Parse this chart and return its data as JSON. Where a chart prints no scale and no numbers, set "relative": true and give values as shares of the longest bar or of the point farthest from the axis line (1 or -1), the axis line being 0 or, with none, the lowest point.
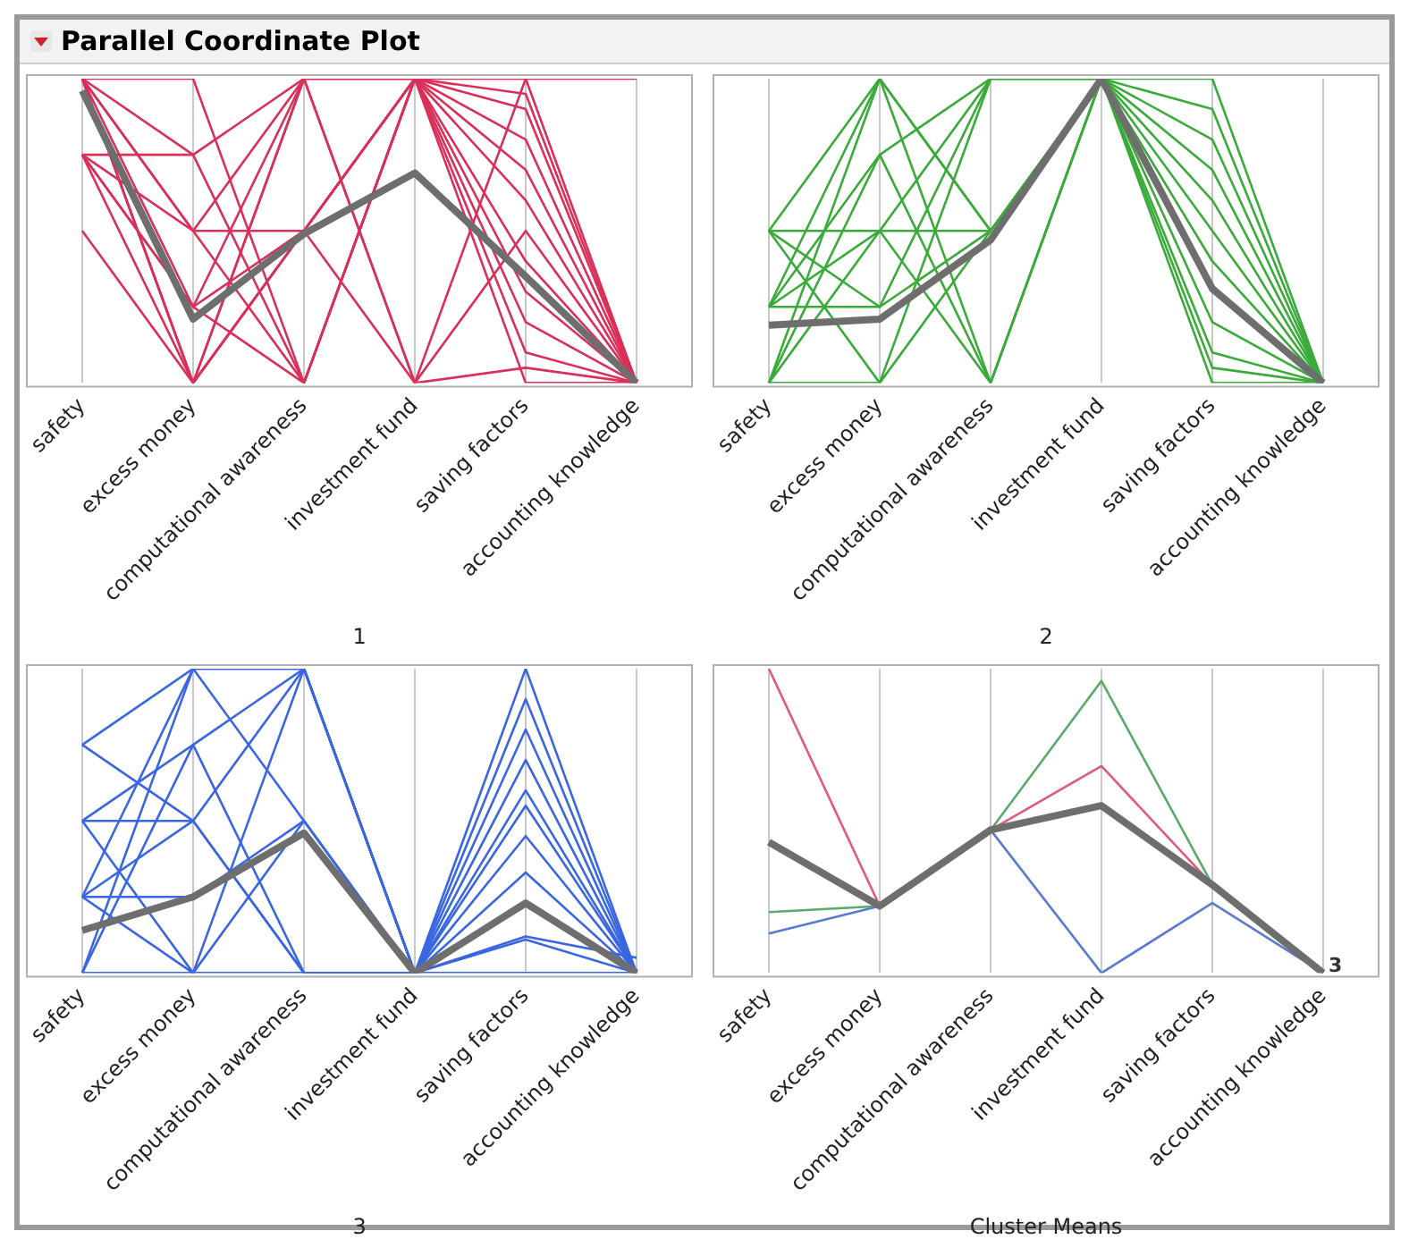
{
  "chart_data": [
    {
      "type": "line",
      "title": "Parallel Coordinate Plot",
      "xlabel": "1",
      "relative": true,
      "grid": "x",
      "categories": [
        "safety",
        "excess money",
        "computational awareness",
        "investment fund",
        "saving factors",
        "accounting knowledge"
      ],
      "series": [
        {
          "color": "#d9305a",
          "values": [
            1,
            0,
            1,
            1,
            0.9,
            0
          ]
        },
        {
          "color": "#d9305a",
          "values": [
            1,
            0.25,
            0.5,
            1,
            0.8,
            0
          ]
        },
        {
          "color": "#d9305a",
          "values": [
            1,
            0.5,
            0,
            1,
            0.7,
            0
          ]
        },
        {
          "color": "#d9305a",
          "values": [
            1,
            0,
            0.5,
            1,
            0.6,
            0
          ]
        },
        {
          "color": "#d9305a",
          "values": [
            1,
            0.75,
            1,
            0,
            0.5,
            0
          ]
        },
        {
          "color": "#d9305a",
          "values": [
            0.75,
            0.5,
            0.5,
            1,
            0.4,
            0
          ]
        },
        {
          "color": "#d9305a",
          "values": [
            0.75,
            0.75,
            0,
            1,
            0.3,
            0
          ]
        },
        {
          "color": "#d9305a",
          "values": [
            0.75,
            0,
            1,
            1,
            0.2,
            0
          ]
        },
        {
          "color": "#d9305a",
          "values": [
            0.75,
            0.25,
            0,
            1,
            0.1,
            0
          ]
        },
        {
          "color": "#d9305a",
          "values": [
            0.5,
            0,
            0.5,
            0,
            1,
            0
          ]
        },
        {
          "color": "#d9305a",
          "values": [
            1,
            1,
            0,
            1,
            0,
            0
          ]
        },
        {
          "color": "#d9305a",
          "values": [
            1,
            0.5,
            1,
            1,
            1,
            1
          ]
        },
        {
          "color": "#d9305a",
          "values": [
            0.75,
            0.25,
            1,
            0,
            0.05,
            0
          ]
        },
        {
          "color": "#d9305a",
          "values": [
            1,
            0,
            0.5,
            1,
            0.95,
            0
          ]
        },
        {
          "color": "#6e6e6e",
          "values": [
            0.96,
            0.21,
            0.49,
            0.69,
            0.35,
            0
          ]
        }
      ]
    },
    {
      "type": "line",
      "xlabel": "2",
      "relative": true,
      "grid": "x",
      "categories": [
        "safety",
        "excess money",
        "computational awareness",
        "investment fund",
        "saving factors",
        "accounting knowledge"
      ],
      "series": [
        {
          "color": "#3aab3a",
          "values": [
            0.5,
            1,
            0.5,
            1,
            0.9,
            0
          ]
        },
        {
          "color": "#3aab3a",
          "values": [
            0.25,
            0.75,
            1,
            1,
            0.8,
            0
          ]
        },
        {
          "color": "#3aab3a",
          "values": [
            0,
            1,
            0,
            1,
            0.6,
            0
          ]
        },
        {
          "color": "#3aab3a",
          "values": [
            0.5,
            0.25,
            1,
            1,
            0.5,
            0
          ]
        },
        {
          "color": "#3aab3a",
          "values": [
            0.25,
            0.5,
            0,
            1,
            0.4,
            0
          ]
        },
        {
          "color": "#3aab3a",
          "values": [
            0,
            0.5,
            1,
            1,
            0.3,
            0
          ]
        },
        {
          "color": "#3aab3a",
          "values": [
            0.5,
            0,
            0.5,
            1,
            0.2,
            0
          ]
        },
        {
          "color": "#3aab3a",
          "values": [
            0.25,
            0.25,
            0.5,
            1,
            0.1,
            0
          ]
        },
        {
          "color": "#3aab3a",
          "values": [
            0,
            0,
            1,
            1,
            0,
            0
          ]
        },
        {
          "color": "#3aab3a",
          "values": [
            0.5,
            0.5,
            0.5,
            1,
            1,
            0
          ]
        },
        {
          "color": "#3aab3a",
          "values": [
            0.25,
            1,
            0.5,
            1,
            0.7,
            0
          ]
        },
        {
          "color": "#3aab3a",
          "values": [
            0,
            0.75,
            0,
            1,
            0.05,
            0
          ]
        },
        {
          "color": "#6e6e6e",
          "values": [
            0.19,
            0.21,
            0.47,
            1,
            0.31,
            0
          ]
        }
      ]
    },
    {
      "type": "line",
      "xlabel": "3",
      "relative": true,
      "grid": "x",
      "categories": [
        "safety",
        "excess money",
        "computational awareness",
        "investment fund",
        "saving factors",
        "accounting knowledge"
      ],
      "series": [
        {
          "color": "#3a66e0",
          "values": [
            0.75,
            1,
            0.5,
            0,
            1,
            0
          ]
        },
        {
          "color": "#3a66e0",
          "values": [
            0.75,
            0.5,
            0,
            0,
            0.9,
            0
          ]
        },
        {
          "color": "#3a66e0",
          "values": [
            0.5,
            0.5,
            1,
            0,
            0.8,
            0
          ]
        },
        {
          "color": "#3a66e0",
          "values": [
            0.5,
            0,
            0.5,
            0,
            0.7,
            0
          ]
        },
        {
          "color": "#3a66e0",
          "values": [
            0.25,
            1,
            1,
            0,
            0.6,
            0
          ]
        },
        {
          "color": "#3a66e0",
          "values": [
            0.25,
            0.25,
            0.5,
            0,
            0.55,
            0
          ]
        },
        {
          "color": "#3a66e0",
          "values": [
            0,
            0.75,
            0,
            0,
            0.45,
            0
          ]
        },
        {
          "color": "#3a66e0",
          "values": [
            0,
            1,
            1,
            0,
            0.33,
            0
          ]
        },
        {
          "color": "#3a66e0",
          "values": [
            0.25,
            0.5,
            0,
            0,
            0.22,
            0
          ]
        },
        {
          "color": "#3a66e0",
          "values": [
            0.5,
            0.75,
            1,
            0,
            0.11,
            0
          ]
        },
        {
          "color": "#3a66e0",
          "values": [
            0,
            0,
            0,
            0,
            0,
            0
          ]
        },
        {
          "color": "#3a66e0",
          "values": [
            0.25,
            0,
            1,
            0,
            0.12,
            0.05
          ]
        },
        {
          "color": "#6e6e6e",
          "values": [
            0.14,
            0.25,
            0.46,
            0,
            0.23,
            0
          ]
        }
      ]
    },
    {
      "type": "line",
      "xlabel": "Cluster Means",
      "relative": true,
      "grid": "x",
      "annotations": [
        {
          "text": "3",
          "x": "accounting knowledge",
          "y": 0
        }
      ],
      "categories": [
        "safety",
        "excess money",
        "computational awareness",
        "investment fund",
        "saving factors",
        "accounting knowledge"
      ],
      "series": [
        {
          "color": "#e05a7a",
          "values": [
            1,
            0.22,
            0.47,
            0.68,
            0.29,
            0
          ]
        },
        {
          "color": "#5aab6a",
          "values": [
            0.2,
            0.22,
            0.47,
            0.96,
            0.29,
            0
          ]
        },
        {
          "color": "#5a7ad0",
          "values": [
            0.13,
            0.22,
            0.47,
            0,
            0.23,
            0
          ]
        },
        {
          "color": "#6e6e6e",
          "values": [
            0.43,
            0.22,
            0.47,
            0.55,
            0.29,
            0
          ]
        }
      ]
    }
  ]
}
